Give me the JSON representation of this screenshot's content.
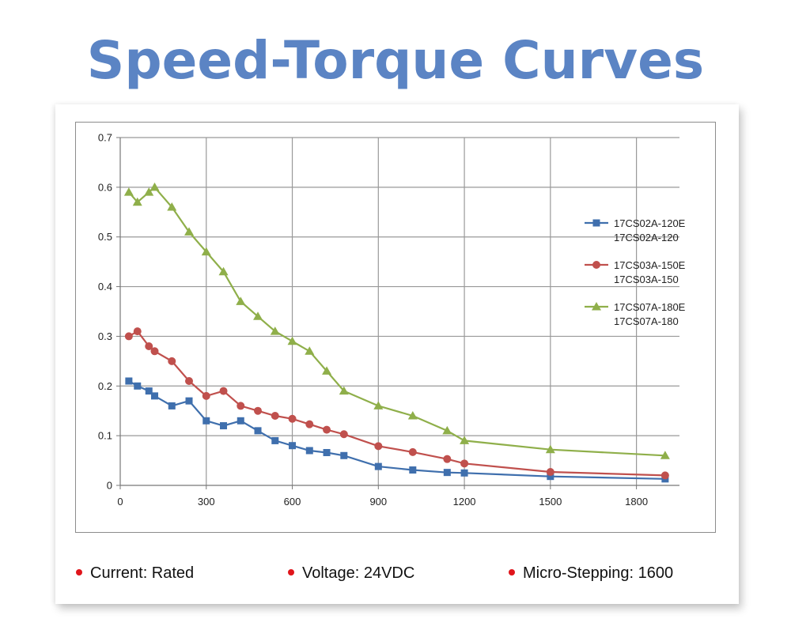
{
  "title": "Speed-Torque Curves",
  "chart_data": {
    "type": "line",
    "title": "",
    "xlabel": "",
    "ylabel": "",
    "xlim": [
      0,
      1950
    ],
    "ylim": [
      0,
      0.7
    ],
    "x_ticks": [
      0,
      300,
      600,
      900,
      1200,
      1500,
      1800
    ],
    "y_ticks": [
      0,
      0.1,
      0.2,
      0.3,
      0.4,
      0.5,
      0.6,
      0.7
    ],
    "x_tick_labels": [
      "0",
      "300",
      "600",
      "900",
      "1200",
      "1500",
      "1800"
    ],
    "y_tick_labels": [
      "0",
      "0.1",
      "0.2",
      "0.3",
      "0.4",
      "0.5",
      "0.6",
      "0.7"
    ],
    "grid": true,
    "legend_position": "right",
    "series": [
      {
        "name": "17CS02A-120E",
        "name2": "17CS02A-120",
        "color": "#3f6fad",
        "marker": "square",
        "x": [
          30,
          60,
          100,
          120,
          180,
          240,
          300,
          360,
          420,
          480,
          540,
          600,
          660,
          720,
          780,
          900,
          1020,
          1140,
          1200,
          1500,
          1900
        ],
        "y": [
          0.21,
          0.2,
          0.19,
          0.18,
          0.16,
          0.17,
          0.13,
          0.12,
          0.13,
          0.11,
          0.09,
          0.08,
          0.07,
          0.066,
          0.06,
          0.038,
          0.031,
          0.026,
          0.025,
          0.018,
          0.013
        ]
      },
      {
        "name": "17CS03A-150E",
        "name2": "17CS03A-150",
        "color": "#c0504d",
        "marker": "circle",
        "x": [
          30,
          60,
          100,
          120,
          180,
          240,
          300,
          360,
          420,
          480,
          540,
          600,
          660,
          720,
          780,
          900,
          1020,
          1140,
          1200,
          1500,
          1900
        ],
        "y": [
          0.3,
          0.31,
          0.28,
          0.27,
          0.25,
          0.21,
          0.18,
          0.19,
          0.16,
          0.15,
          0.14,
          0.134,
          0.123,
          0.112,
          0.103,
          0.079,
          0.067,
          0.053,
          0.044,
          0.027,
          0.02
        ]
      },
      {
        "name": "17CS07A-180E",
        "name2": "17CS07A-180",
        "color": "#8faf4a",
        "marker": "triangle",
        "x": [
          30,
          60,
          100,
          120,
          180,
          240,
          300,
          360,
          420,
          480,
          540,
          600,
          660,
          720,
          780,
          900,
          1020,
          1140,
          1200,
          1500,
          1900
        ],
        "y": [
          0.59,
          0.57,
          0.59,
          0.6,
          0.56,
          0.51,
          0.47,
          0.43,
          0.37,
          0.34,
          0.31,
          0.29,
          0.27,
          0.23,
          0.19,
          0.16,
          0.14,
          0.11,
          0.09,
          0.072,
          0.06
        ]
      }
    ]
  },
  "notes": [
    {
      "text": "Current: Rated"
    },
    {
      "text": "Voltage: 24VDC"
    },
    {
      "text": "Micro-Stepping: 1600"
    }
  ]
}
